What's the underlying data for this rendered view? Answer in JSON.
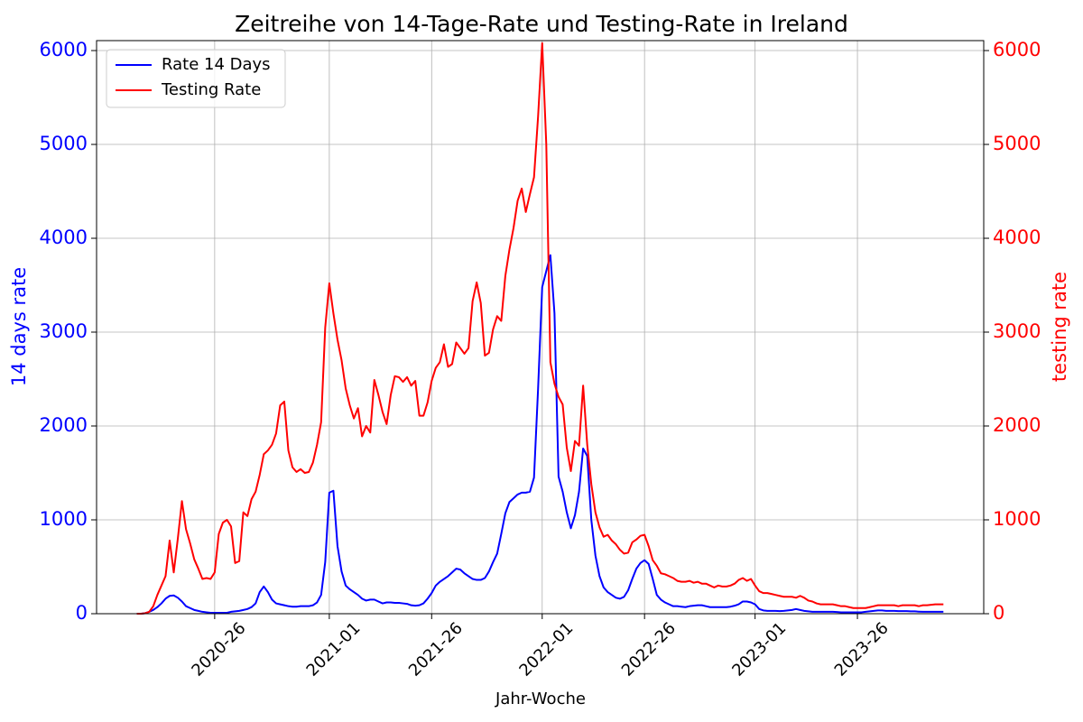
{
  "chart_data": {
    "type": "line",
    "title": "Zeitreihe von 14-Tage-Rate und Testing-Rate in Ireland",
    "x_label": "Jahr-Woche",
    "y_label": "14 days rate",
    "y2_label": "testing rate",
    "x": [
      7,
      8,
      9,
      10,
      11,
      12,
      13,
      14,
      15,
      16,
      17,
      18,
      19,
      20,
      21,
      22,
      23,
      24,
      25,
      26,
      27,
      28,
      29,
      30,
      31,
      32,
      33,
      34,
      35,
      36,
      37,
      38,
      39,
      40,
      41,
      42,
      43,
      44,
      45,
      46,
      47,
      48,
      49,
      50,
      51,
      52,
      53,
      54,
      55,
      56,
      57,
      58,
      59,
      60,
      61,
      62,
      63,
      64,
      65,
      66,
      67,
      68,
      69,
      70,
      71,
      72,
      73,
      74,
      75,
      76,
      77,
      78,
      79,
      80,
      81,
      82,
      83,
      84,
      85,
      86,
      87,
      88,
      89,
      90,
      91,
      92,
      93,
      94,
      95,
      96,
      97,
      98,
      99,
      100,
      101,
      102,
      103,
      104,
      105,
      106,
      107,
      108,
      109,
      110,
      111,
      112,
      113,
      114,
      115,
      116,
      117,
      118,
      119,
      120,
      121,
      122,
      123,
      124,
      125,
      126,
      127,
      128,
      129,
      130,
      131,
      132,
      133,
      134,
      135,
      136,
      137,
      138,
      139,
      140,
      141,
      142,
      143,
      144,
      145,
      146,
      147,
      148,
      149,
      150,
      151,
      152,
      153,
      154,
      155,
      156,
      157,
      158,
      159,
      160,
      161,
      162,
      163,
      164,
      165,
      166,
      167,
      168,
      169,
      170,
      171,
      172,
      173,
      174,
      175,
      176,
      177,
      178,
      179,
      180,
      181,
      182,
      183,
      184,
      185,
      186,
      187,
      188,
      189,
      190,
      191,
      192,
      193,
      194,
      195,
      196,
      197,
      198,
      199,
      200,
      201,
      202,
      203,
      204
    ],
    "xlim": [
      -2.85,
      213.85
    ],
    "xticks": [
      {
        "value": 26,
        "label": "2020-26"
      },
      {
        "value": 54,
        "label": "2021-01"
      },
      {
        "value": 79,
        "label": "2021-26"
      },
      {
        "value": 106,
        "label": "2022-01"
      },
      {
        "value": 131,
        "label": "2022-26"
      },
      {
        "value": 158,
        "label": "2023-01"
      },
      {
        "value": 183,
        "label": "2023-26"
      }
    ],
    "ylim": [
      0,
      6106
    ],
    "yticks": [
      0,
      1000,
      2000,
      3000,
      4000,
      5000,
      6000
    ],
    "y2lim": [
      0,
      6106
    ],
    "y2ticks": [
      0,
      1000,
      2000,
      3000,
      4000,
      5000,
      6000
    ],
    "grid": true,
    "legend": "upper left",
    "series": [
      {
        "name": "Rate 14 Days",
        "color": "#0000ff",
        "values": [
          0,
          0,
          5,
          20,
          40,
          70,
          110,
          160,
          190,
          195,
          170,
          130,
          80,
          60,
          40,
          30,
          20,
          15,
          10,
          10,
          10,
          10,
          10,
          20,
          25,
          30,
          40,
          50,
          70,
          110,
          230,
          290,
          230,
          150,
          110,
          100,
          90,
          80,
          75,
          75,
          80,
          80,
          80,
          90,
          120,
          200,
          550,
          1290,
          1310,
          720,
          450,
          300,
          260,
          230,
          200,
          160,
          140,
          150,
          150,
          130,
          110,
          120,
          120,
          115,
          115,
          110,
          105,
          90,
          85,
          90,
          110,
          160,
          220,
          300,
          340,
          370,
          400,
          440,
          480,
          470,
          430,
          400,
          370,
          360,
          360,
          380,
          450,
          550,
          640,
          850,
          1070,
          1190,
          1230,
          1270,
          1290,
          1290,
          1300,
          1450,
          2400,
          3480,
          3650,
          3820,
          3200,
          1460,
          1300,
          1080,
          910,
          1050,
          1300,
          1760,
          1680,
          1000,
          620,
          400,
          280,
          230,
          200,
          170,
          160,
          180,
          250,
          370,
          480,
          540,
          570,
          530,
          370,
          200,
          150,
          120,
          100,
          80,
          80,
          75,
          70,
          80,
          85,
          90,
          90,
          80,
          70,
          70,
          70,
          70,
          70,
          75,
          85,
          100,
          130,
          130,
          120,
          100,
          50,
          35,
          30,
          30,
          30,
          28,
          30,
          35,
          40,
          50,
          40,
          30,
          25,
          20,
          20,
          20,
          20,
          20,
          20,
          18,
          15,
          15,
          15,
          15,
          15,
          15,
          20,
          25,
          30,
          35,
          35,
          30,
          30,
          30,
          28,
          28,
          28,
          25,
          25,
          22,
          20,
          20,
          20,
          20,
          20,
          20
        ]
      },
      {
        "name": "Testing Rate",
        "color": "#ff0000",
        "axis": "y2",
        "values": [
          0,
          0,
          5,
          20,
          80,
          200,
          300,
          400,
          780,
          440,
          800,
          1200,
          900,
          750,
          580,
          480,
          370,
          380,
          370,
          440,
          850,
          970,
          1000,
          930,
          540,
          560,
          1080,
          1040,
          1220,
          1300,
          1480,
          1700,
          1740,
          1800,
          1920,
          2220,
          2260,
          1740,
          1560,
          1510,
          1540,
          1500,
          1510,
          1610,
          1800,
          2040,
          3050,
          3520,
          3200,
          2920,
          2700,
          2400,
          2220,
          2080,
          2190,
          1890,
          2000,
          1930,
          2490,
          2330,
          2150,
          2020,
          2330,
          2530,
          2520,
          2470,
          2520,
          2430,
          2480,
          2110,
          2110,
          2250,
          2480,
          2620,
          2680,
          2870,
          2630,
          2660,
          2890,
          2830,
          2770,
          2830,
          3330,
          3530,
          3310,
          2750,
          2780,
          3030,
          3170,
          3120,
          3600,
          3880,
          4110,
          4400,
          4530,
          4280,
          4470,
          4650,
          5300,
          6080,
          5000,
          2680,
          2450,
          2310,
          2230,
          1770,
          1520,
          1840,
          1790,
          2430,
          1800,
          1380,
          1080,
          920,
          820,
          840,
          780,
          740,
          680,
          640,
          650,
          760,
          790,
          830,
          840,
          720,
          570,
          510,
          430,
          420,
          400,
          380,
          350,
          340,
          340,
          350,
          330,
          340,
          320,
          320,
          300,
          280,
          300,
          290,
          290,
          300,
          320,
          360,
          380,
          350,
          370,
          300,
          240,
          220,
          220,
          210,
          200,
          190,
          180,
          180,
          180,
          170,
          190,
          170,
          140,
          130,
          110,
          100,
          100,
          100,
          100,
          90,
          80,
          80,
          70,
          60,
          60,
          60,
          60,
          70,
          80,
          90,
          90,
          90,
          90,
          90,
          80,
          90,
          90,
          90,
          90,
          80,
          90,
          90,
          95,
          100,
          100,
          100
        ]
      }
    ]
  }
}
